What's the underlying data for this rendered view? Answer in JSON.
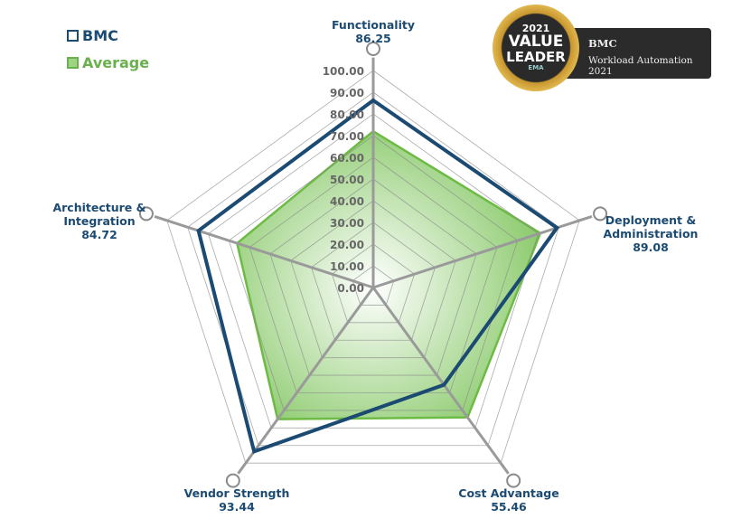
{
  "chart_data": {
    "type": "radar",
    "axes": [
      "Functionality",
      "Deployment & Administration",
      "Cost Advantage",
      "Vendor Strength",
      "Architecture & Integration"
    ],
    "axis_labels": [
      {
        "name": "Functionality",
        "value_label": "86.25"
      },
      {
        "name_lines": [
          "Deployment &",
          "Administration"
        ],
        "value_label": "89.08"
      },
      {
        "name": "Cost Advantage",
        "value_label": "55.46"
      },
      {
        "name": "Vendor Strength",
        "value_label": "93.44"
      },
      {
        "name_lines": [
          "Architecture &",
          "Integration"
        ],
        "value_label": "84.72"
      }
    ],
    "ticks": [
      "0.00",
      "10.00",
      "20.00",
      "30.00",
      "40.00",
      "50.00",
      "60.00",
      "70.00",
      "80.00",
      "90.00",
      "100.00"
    ],
    "range": [
      0,
      100
    ],
    "grid": true,
    "legend_position": "top-left",
    "series": [
      {
        "name": "BMC",
        "values": [
          86.25,
          89.08,
          55.46,
          93.44,
          84.72
        ],
        "color": "#1b4a72",
        "style": "outline"
      },
      {
        "name": "Average",
        "values": [
          72,
          81,
          74,
          75,
          66
        ],
        "color": "#6dbb45",
        "style": "filled"
      }
    ]
  },
  "badge": {
    "year": "2021",
    "line1": "VALUE",
    "line2": "LEADER",
    "brand": "EMA",
    "vendor": "BMC",
    "category": "Workload Automation 2021"
  }
}
